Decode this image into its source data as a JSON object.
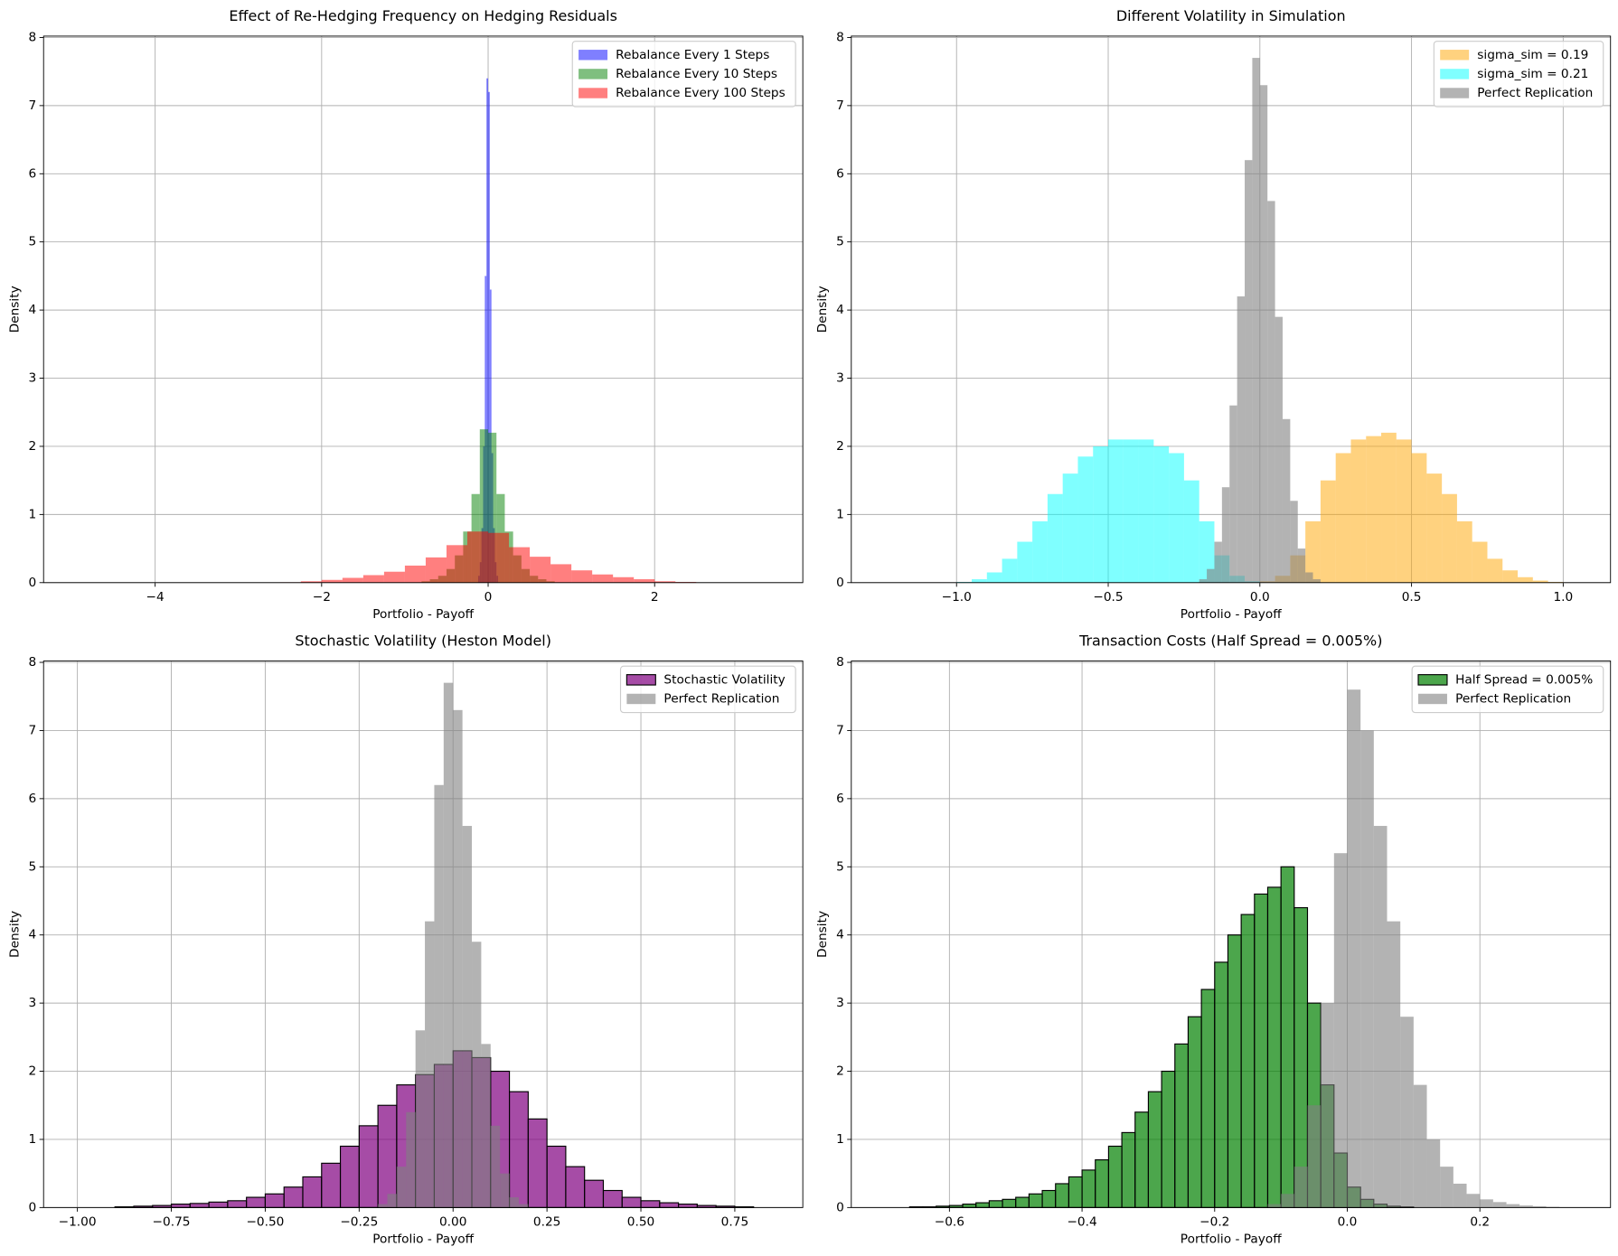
{
  "chart_data": [
    {
      "type": "histogram",
      "title": "Effect of Re-Hedging Frequency on Hedging Residuals",
      "xlabel": "Portfolio - Payoff",
      "ylabel": "Density",
      "xlim": [
        -5.34,
        3.78
      ],
      "ylim": [
        0,
        8.02
      ],
      "xticks": [
        {
          "value": -4,
          "label": "−4"
        },
        {
          "value": -2,
          "label": "−2"
        },
        0,
        2
      ],
      "yticks": [
        0,
        1,
        2,
        3,
        4,
        5,
        6,
        7,
        8
      ],
      "grid": true,
      "legend": "upper right",
      "series": [
        {
          "name": "Rebalance Every 1 Steps",
          "color": "#0000ff",
          "opacity": 0.5,
          "bins": [
            -0.12,
            -0.1,
            -0.08,
            -0.06,
            -0.04,
            -0.02,
            0,
            0.02,
            0.04,
            0.06,
            0.08,
            0.1,
            0.12
          ],
          "values": [
            0.1,
            0.3,
            0.8,
            2.0,
            4.5,
            7.4,
            7.2,
            4.3,
            1.9,
            0.8,
            0.3,
            0.1
          ]
        },
        {
          "name": "Rebalance Every 10 Steps",
          "color": "#008000",
          "opacity": 0.5,
          "bins": [
            -0.8,
            -0.7,
            -0.6,
            -0.5,
            -0.4,
            -0.3,
            -0.2,
            -0.1,
            0,
            0.1,
            0.2,
            0.3,
            0.4,
            0.5,
            0.6,
            0.7,
            0.8
          ],
          "values": [
            0.02,
            0.05,
            0.1,
            0.2,
            0.4,
            0.75,
            1.3,
            2.25,
            2.2,
            1.3,
            0.75,
            0.4,
            0.2,
            0.1,
            0.05,
            0.02
          ]
        },
        {
          "name": "Rebalance Every 100 Steps",
          "color": "#ff0000",
          "opacity": 0.5,
          "bins": [
            -2.5,
            -2.25,
            -2,
            -1.75,
            -1.5,
            -1.25,
            -1,
            -0.75,
            -0.5,
            -0.25,
            0,
            0.25,
            0.5,
            0.75,
            1,
            1.25,
            1.5,
            1.75,
            2,
            2.25,
            2.5
          ],
          "values": [
            0.005,
            0.02,
            0.04,
            0.07,
            0.11,
            0.16,
            0.25,
            0.37,
            0.55,
            0.75,
            0.73,
            0.52,
            0.38,
            0.27,
            0.18,
            0.12,
            0.08,
            0.05,
            0.02,
            0.01
          ]
        }
      ]
    },
    {
      "type": "histogram",
      "title": "Different Volatility in Simulation",
      "xlabel": "Portfolio - Payoff",
      "ylabel": "Density",
      "xlim": [
        -1.347,
        1.156
      ],
      "ylim": [
        0,
        8.02
      ],
      "xticks": [
        {
          "value": -1,
          "label": "−1.0"
        },
        {
          "value": -0.5,
          "label": "−0.5"
        },
        {
          "value": 0,
          "label": "0.0"
        },
        0.5,
        {
          "value": 1,
          "label": "1.0"
        }
      ],
      "yticks": [
        0,
        1,
        2,
        3,
        4,
        5,
        6,
        7,
        8
      ],
      "grid": true,
      "legend": "upper right",
      "series": [
        {
          "name": "sigma_sim = 0.19",
          "color": "#ffa500",
          "opacity": 0.5,
          "bins": [
            0,
            0.05,
            0.1,
            0.15,
            0.2,
            0.25,
            0.3,
            0.35,
            0.4,
            0.45,
            0.5,
            0.55,
            0.6,
            0.65,
            0.7,
            0.75,
            0.8,
            0.85,
            0.9,
            0.95,
            1
          ],
          "values": [
            0.02,
            0.1,
            0.4,
            0.9,
            1.5,
            1.9,
            2.1,
            2.15,
            2.2,
            2.1,
            1.9,
            1.6,
            1.3,
            0.9,
            0.6,
            0.35,
            0.18,
            0.08,
            0.03,
            0.01
          ]
        },
        {
          "name": "sigma_sim = 0.21",
          "color": "#00ffff",
          "opacity": 0.5,
          "bins": [
            -1,
            -0.95,
            -0.9,
            -0.85,
            -0.8,
            -0.75,
            -0.7,
            -0.65,
            -0.6,
            -0.55,
            -0.5,
            -0.45,
            -0.4,
            -0.35,
            -0.3,
            -0.25,
            -0.2,
            -0.15,
            -0.1,
            -0.05,
            0
          ],
          "values": [
            0.01,
            0.05,
            0.15,
            0.35,
            0.6,
            0.9,
            1.3,
            1.6,
            1.85,
            2.0,
            2.1,
            2.1,
            2.1,
            2.0,
            1.9,
            1.5,
            0.9,
            0.4,
            0.1,
            0.02
          ]
        },
        {
          "name": "Perfect Replication",
          "color": "#808080",
          "opacity": 0.6,
          "bins": [
            -0.2,
            -0.175,
            -0.15,
            -0.125,
            -0.1,
            -0.075,
            -0.05,
            -0.025,
            0,
            0.025,
            0.05,
            0.075,
            0.1,
            0.125,
            0.15,
            0.175,
            0.2
          ],
          "values": [
            0.05,
            0.2,
            0.6,
            1.4,
            2.6,
            4.2,
            6.2,
            7.7,
            7.3,
            5.6,
            3.9,
            2.4,
            1.2,
            0.5,
            0.15,
            0.05
          ]
        }
      ]
    },
    {
      "type": "histogram",
      "title": "Stochastic Volatility (Heston Model)",
      "xlabel": "Portfolio - Payoff",
      "ylabel": "Density",
      "xlim": [
        -1.09,
        0.931
      ],
      "ylim": [
        0,
        8.02
      ],
      "xticks": [
        {
          "value": -1,
          "label": "−1.00"
        },
        {
          "value": -0.75,
          "label": "−0.75"
        },
        {
          "value": -0.5,
          "label": "−0.50"
        },
        {
          "value": -0.25,
          "label": "−0.25"
        },
        {
          "value": 0,
          "label": "0.00"
        },
        0.25,
        {
          "value": 0.5,
          "label": "0.50"
        },
        0.75
      ],
      "yticks": [
        0,
        1,
        2,
        3,
        4,
        5,
        6,
        7,
        8
      ],
      "grid": true,
      "legend": "upper right",
      "series": [
        {
          "name": "Stochastic Volatility",
          "color": "#800080",
          "opacity": 0.7,
          "edgecolor": "#000000",
          "bins": [
            -0.9,
            -0.85,
            -0.8,
            -0.75,
            -0.7,
            -0.65,
            -0.6,
            -0.55,
            -0.5,
            -0.45,
            -0.4,
            -0.35,
            -0.3,
            -0.25,
            -0.2,
            -0.15,
            -0.1,
            -0.05,
            0,
            0.05,
            0.1,
            0.15,
            0.2,
            0.25,
            0.3,
            0.35,
            0.4,
            0.45,
            0.5,
            0.55,
            0.6,
            0.65,
            0.7,
            0.75,
            0.8
          ],
          "values": [
            0.01,
            0.02,
            0.03,
            0.05,
            0.06,
            0.08,
            0.1,
            0.15,
            0.2,
            0.3,
            0.45,
            0.65,
            0.9,
            1.2,
            1.5,
            1.8,
            1.95,
            2.1,
            2.3,
            2.2,
            2.0,
            1.7,
            1.3,
            0.9,
            0.6,
            0.4,
            0.25,
            0.15,
            0.1,
            0.07,
            0.05,
            0.03,
            0.02,
            0.01
          ]
        },
        {
          "name": "Perfect Replication",
          "color": "#808080",
          "opacity": 0.6,
          "bins": [
            -0.2,
            -0.175,
            -0.15,
            -0.125,
            -0.1,
            -0.075,
            -0.05,
            -0.025,
            0,
            0.025,
            0.05,
            0.075,
            0.1,
            0.125,
            0.15,
            0.175,
            0.2
          ],
          "values": [
            0.05,
            0.2,
            0.6,
            1.4,
            2.6,
            4.2,
            6.2,
            7.7,
            7.3,
            5.6,
            3.9,
            2.4,
            1.2,
            0.5,
            0.15,
            0.05
          ]
        }
      ]
    },
    {
      "type": "histogram",
      "title": "Transaction Costs (Half Spread = 0.005%)",
      "xlabel": "Portfolio - Payoff",
      "ylabel": "Density",
      "xlim": [
        -0.748,
        0.397
      ],
      "ylim": [
        0,
        8.02
      ],
      "xticks": [
        {
          "value": -0.6,
          "label": "−0.6"
        },
        {
          "value": -0.4,
          "label": "−0.4"
        },
        {
          "value": -0.2,
          "label": "−0.2"
        },
        {
          "value": 0,
          "label": "0.0"
        },
        0.2
      ],
      "yticks": [
        0,
        1,
        2,
        3,
        4,
        5,
        6,
        7,
        8
      ],
      "grid": true,
      "legend": "upper right",
      "series": [
        {
          "name": "Half Spread = 0.005%",
          "color": "#008000",
          "opacity": 0.7,
          "edgecolor": "#000000",
          "bins": [
            -0.66,
            -0.64,
            -0.62,
            -0.6,
            -0.58,
            -0.56,
            -0.54,
            -0.52,
            -0.5,
            -0.48,
            -0.46,
            -0.44,
            -0.42,
            -0.4,
            -0.38,
            -0.36,
            -0.34,
            -0.32,
            -0.3,
            -0.28,
            -0.26,
            -0.24,
            -0.22,
            -0.2,
            -0.18,
            -0.16,
            -0.14,
            -0.12,
            -0.1,
            -0.08,
            -0.06,
            -0.04,
            -0.02,
            0,
            0.02,
            0.04,
            0.06,
            0.08,
            0.1
          ],
          "values": [
            0.01,
            0.01,
            0.02,
            0.03,
            0.05,
            0.07,
            0.1,
            0.12,
            0.15,
            0.2,
            0.25,
            0.35,
            0.45,
            0.55,
            0.7,
            0.9,
            1.1,
            1.4,
            1.7,
            2.0,
            2.4,
            2.8,
            3.2,
            3.6,
            4.0,
            4.3,
            4.6,
            4.7,
            5.0,
            4.4,
            3.0,
            1.8,
            0.8,
            0.3,
            0.12,
            0.05,
            0.02,
            0.01
          ]
        },
        {
          "name": "Perfect Replication",
          "color": "#808080",
          "opacity": 0.6,
          "bins": [
            -0.12,
            -0.1,
            -0.08,
            -0.06,
            -0.04,
            -0.02,
            0,
            0.02,
            0.04,
            0.06,
            0.08,
            0.1,
            0.12,
            0.14,
            0.16,
            0.18,
            0.2,
            0.22,
            0.24,
            0.26,
            0.28,
            0.3,
            0.32
          ],
          "values": [
            0.05,
            0.2,
            0.6,
            1.5,
            3.0,
            5.2,
            7.6,
            7.0,
            5.6,
            4.2,
            2.8,
            1.8,
            1.0,
            0.6,
            0.35,
            0.2,
            0.12,
            0.08,
            0.05,
            0.03,
            0.02,
            0.01
          ]
        }
      ]
    }
  ]
}
